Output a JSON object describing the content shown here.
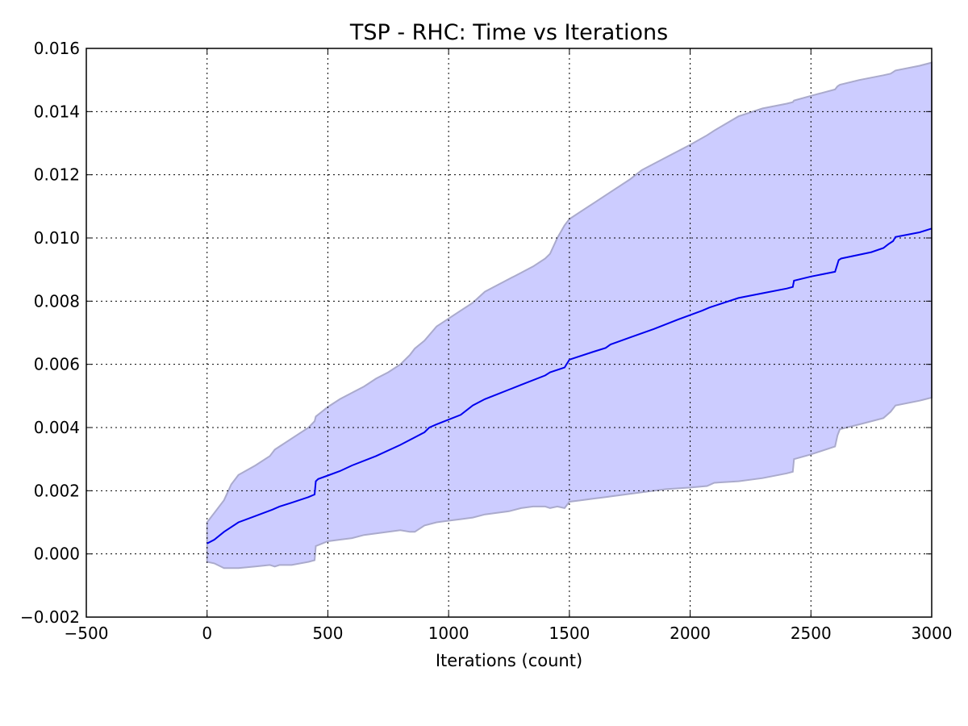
{
  "chart_data": {
    "type": "line",
    "title": "TSP - RHC: Time vs Iterations",
    "xlabel": "Iterations (count)",
    "ylabel": "",
    "xlim": [
      -500,
      3000
    ],
    "ylim": [
      -0.002,
      0.016
    ],
    "x_ticks": [
      -500,
      0,
      500,
      1000,
      1500,
      2000,
      2500,
      3000
    ],
    "x_tick_labels": [
      "−500",
      "0",
      "500",
      "1000",
      "1500",
      "2000",
      "2500",
      "3000"
    ],
    "y_ticks": [
      -0.002,
      0.0,
      0.002,
      0.004,
      0.006,
      0.008,
      0.01,
      0.012,
      0.014,
      0.016
    ],
    "y_tick_labels": [
      "−0.002",
      "0.000",
      "0.002",
      "0.004",
      "0.006",
      "0.008",
      "0.010",
      "0.012",
      "0.014",
      "0.016"
    ],
    "grid": true,
    "legend": "none",
    "colors": {
      "line": "#0000ee",
      "band_fill": "#ccccff",
      "band_edge": "#aaaacc"
    },
    "series": [
      {
        "type": "line",
        "x": [
          0,
          30,
          70,
          130,
          200,
          270,
          300,
          350,
          420,
          445,
          450,
          460,
          500,
          550,
          600,
          700,
          800,
          850,
          900,
          920,
          950,
          1050,
          1100,
          1150,
          1200,
          1250,
          1300,
          1400,
          1420,
          1480,
          1500,
          1600,
          1650,
          1670,
          1750,
          1850,
          1950,
          2050,
          2080,
          2200,
          2300,
          2400,
          2425,
          2430,
          2500,
          2600,
          2615,
          2625,
          2750,
          2800,
          2820,
          2840,
          2850,
          2950,
          3000
        ],
        "y": [
          0.00033,
          0.00045,
          0.0007,
          0.001,
          0.0012,
          0.0014,
          0.0015,
          0.00162,
          0.0018,
          0.00188,
          0.0023,
          0.00237,
          0.00248,
          0.00262,
          0.0028,
          0.0031,
          0.00345,
          0.00365,
          0.00385,
          0.004,
          0.0041,
          0.0044,
          0.0047,
          0.0049,
          0.00505,
          0.0052,
          0.00535,
          0.00565,
          0.00575,
          0.0059,
          0.00615,
          0.0064,
          0.00652,
          0.00663,
          0.00685,
          0.00712,
          0.00742,
          0.0077,
          0.0078,
          0.0081,
          0.00825,
          0.0084,
          0.00845,
          0.00865,
          0.00878,
          0.00893,
          0.0093,
          0.00935,
          0.00955,
          0.00968,
          0.0098,
          0.0099,
          0.01003,
          0.01018,
          0.0103
        ]
      },
      {
        "type": "band",
        "x": [
          0,
          30,
          70,
          100,
          130,
          200,
          260,
          280,
          300,
          350,
          420,
          445,
          450,
          500,
          550,
          600,
          650,
          700,
          750,
          800,
          840,
          860,
          900,
          950,
          1000,
          1050,
          1100,
          1150,
          1200,
          1250,
          1300,
          1350,
          1400,
          1420,
          1450,
          1480,
          1500,
          1550,
          1600,
          1650,
          1700,
          1750,
          1800,
          1900,
          2000,
          2070,
          2100,
          2200,
          2300,
          2400,
          2425,
          2430,
          2500,
          2600,
          2610,
          2620,
          2700,
          2800,
          2830,
          2850,
          2950,
          3000
        ],
        "upper": [
          0.001,
          0.0013,
          0.0017,
          0.0022,
          0.0025,
          0.0028,
          0.0031,
          0.0033,
          0.0034,
          0.00365,
          0.004,
          0.0042,
          0.00435,
          0.00465,
          0.0049,
          0.0051,
          0.0053,
          0.00555,
          0.00575,
          0.006,
          0.0063,
          0.0065,
          0.00675,
          0.0072,
          0.00745,
          0.0077,
          0.00795,
          0.0083,
          0.0085,
          0.0087,
          0.0089,
          0.0091,
          0.00935,
          0.0095,
          0.01,
          0.0104,
          0.0106,
          0.01085,
          0.0111,
          0.01135,
          0.0116,
          0.01185,
          0.01215,
          0.01255,
          0.01295,
          0.01325,
          0.0134,
          0.01385,
          0.0141,
          0.01425,
          0.0143,
          0.01435,
          0.0145,
          0.0147,
          0.0148,
          0.01485,
          0.015,
          0.01515,
          0.0152,
          0.0153,
          0.01545,
          0.01555
        ],
        "lower": [
          -0.00025,
          -0.0003,
          -0.00045,
          -0.00045,
          -0.00045,
          -0.0004,
          -0.00035,
          -0.0004,
          -0.00035,
          -0.00035,
          -0.00025,
          -0.0002,
          0.00025,
          0.0004,
          0.00045,
          0.0005,
          0.0006,
          0.00065,
          0.0007,
          0.00075,
          0.0007,
          0.0007,
          0.0009,
          0.001,
          0.00105,
          0.0011,
          0.00115,
          0.00125,
          0.0013,
          0.00135,
          0.00145,
          0.0015,
          0.0015,
          0.00145,
          0.0015,
          0.00145,
          0.00165,
          0.0017,
          0.00175,
          0.0018,
          0.00185,
          0.0019,
          0.00195,
          0.00205,
          0.0021,
          0.00215,
          0.00225,
          0.0023,
          0.0024,
          0.00255,
          0.0026,
          0.003,
          0.00315,
          0.0034,
          0.00375,
          0.00395,
          0.0041,
          0.0043,
          0.0045,
          0.0047,
          0.00485,
          0.00495
        ]
      }
    ]
  }
}
